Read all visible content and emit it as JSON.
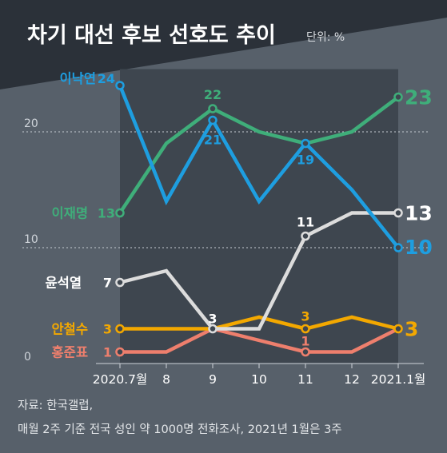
{
  "chart_data": {
    "type": "line",
    "title": "차기 대선 후보 선호도 추이",
    "unit": "단위: %",
    "x": [
      "2020.7월",
      "8",
      "9",
      "10",
      "11",
      "12",
      "2021.1월"
    ],
    "ylim": [
      0,
      25
    ],
    "y_ticks": [
      "0",
      "10",
      "20"
    ],
    "series": [
      {
        "name": "이낙연",
        "color": "#1e9ee0",
        "values": [
          24,
          14,
          21,
          14,
          19,
          15,
          10
        ],
        "point_labels": [
          {
            "i": 0,
            "text": "24"
          },
          {
            "i": 2,
            "text": "21"
          },
          {
            "i": 4,
            "text": "19"
          },
          {
            "i": 6,
            "text": "10"
          }
        ]
      },
      {
        "name": "이재명",
        "color": "#3fae7a",
        "values": [
          13,
          19,
          22,
          20,
          19,
          20,
          23
        ],
        "point_labels": [
          {
            "i": 0,
            "text": "13"
          },
          {
            "i": 2,
            "text": "22"
          },
          {
            "i": 6,
            "text": "23"
          }
        ]
      },
      {
        "name": "윤석열",
        "color": "#dcdcdc",
        "values": [
          7,
          8,
          3,
          3,
          11,
          13,
          13
        ],
        "point_labels": [
          {
            "i": 0,
            "text": "7"
          },
          {
            "i": 2,
            "text": "3"
          },
          {
            "i": 4,
            "text": "11"
          },
          {
            "i": 6,
            "text": "13"
          }
        ]
      },
      {
        "name": "안철수",
        "color": "#f3a800",
        "values": [
          3,
          3,
          3,
          4,
          3,
          4,
          3
        ],
        "point_labels": [
          {
            "i": 0,
            "text": "3"
          },
          {
            "i": 4,
            "text": "3"
          },
          {
            "i": 6,
            "text": "3"
          }
        ]
      },
      {
        "name": "홍준표",
        "color": "#ee7f6d",
        "values": [
          1,
          1,
          3,
          2,
          1,
          1,
          3
        ],
        "point_labels": [
          {
            "i": 0,
            "text": "1"
          },
          {
            "i": 4,
            "text": "1"
          }
        ]
      }
    ],
    "grid": true
  },
  "source": {
    "line1": "자료: 한국갤럽,",
    "line2": "매월 2주 기준 전국 성인 약 1000명 전화조사, 2021년 1월은 3주"
  }
}
